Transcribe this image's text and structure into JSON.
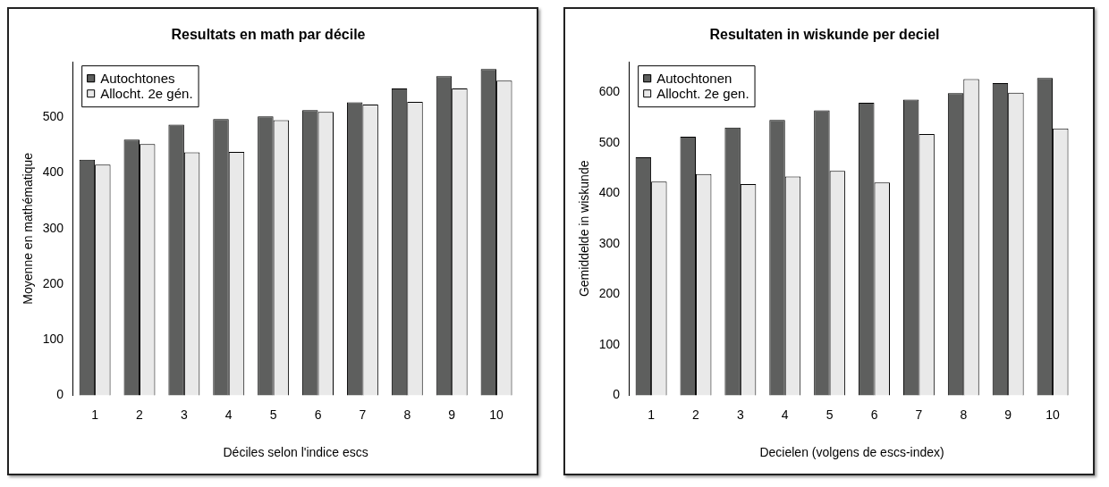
{
  "chart_data": [
    {
      "type": "bar",
      "title": "Resultats en math par décile",
      "xlabel": "Déciles selon l'indice escs",
      "ylabel": "Moyenne en mathématique",
      "categories": [
        "1",
        "2",
        "3",
        "4",
        "5",
        "6",
        "7",
        "8",
        "9",
        "10"
      ],
      "series": [
        {
          "name": "Autochtones",
          "color": "#5e5f5e",
          "values": [
            424,
            460,
            487,
            497,
            502,
            513,
            527,
            552,
            574,
            587
          ]
        },
        {
          "name": "Allocht. 2e gén.",
          "color": "#e9e9e9",
          "values": [
            415,
            452,
            437,
            438,
            495,
            510,
            523,
            528,
            552,
            566
          ]
        }
      ],
      "ylim": [
        0,
        600
      ],
      "yticks": [
        0,
        100,
        200,
        300,
        400,
        500
      ],
      "grid": false,
      "legend": "top left"
    },
    {
      "type": "bar",
      "title": "Resultaten in wiskunde per deciel",
      "xlabel": "Decielen (volgens de escs-index)",
      "ylabel": "Gemiddelde in wiskunde",
      "categories": [
        "1",
        "2",
        "3",
        "4",
        "5",
        "6",
        "7",
        "8",
        "9",
        "10"
      ],
      "series": [
        {
          "name": "Autochtonen",
          "color": "#5e5f5e",
          "values": [
            471,
            512,
            530,
            545,
            564,
            579,
            585,
            598,
            618,
            628
          ]
        },
        {
          "name": "Allocht. 2e gen.",
          "color": "#e9e9e9",
          "values": [
            423,
            438,
            418,
            433,
            444,
            421,
            517,
            626,
            599,
            528
          ]
        }
      ],
      "ylim": [
        0,
        660
      ],
      "yticks": [
        0,
        100,
        200,
        300,
        400,
        500,
        600
      ],
      "grid": false,
      "legend": "top left"
    }
  ]
}
